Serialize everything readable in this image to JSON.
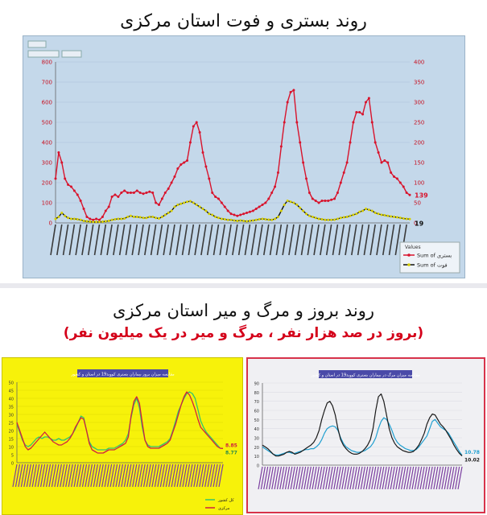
{
  "page": {
    "title_main": "روند بستری و فوت استان مرکزی",
    "title_second": "روند بروز و مرگ و میر استان مرکزی",
    "subtitle_second": "(بروز در صد هزار نفر ، مرگ و میر در یک میلیون نفر)"
  },
  "chart_data": [
    {
      "type": "line",
      "yticks": [
        "0",
        "100",
        "200",
        "300",
        "400",
        "500",
        "600",
        "700",
        "800"
      ],
      "ylim": [
        0,
        800
      ],
      "y2ticks": [
        "0",
        "50",
        "100",
        "150",
        "200",
        "250",
        "300",
        "350",
        "400"
      ],
      "y2lim": [
        0,
        400
      ],
      "legend": {
        "title": "Values",
        "position": "bottom-right",
        "entries": [
          "Sum of بستری",
          "Sum of فوت"
        ]
      },
      "end_labels": [
        "139",
        "19"
      ],
      "series": [
        {
          "name": "Sum of بستری",
          "color": "#d8132c",
          "values": [
            220,
            350,
            300,
            220,
            190,
            180,
            160,
            140,
            110,
            70,
            30,
            20,
            15,
            20,
            15,
            30,
            60,
            80,
            130,
            140,
            130,
            150,
            160,
            150,
            150,
            150,
            160,
            150,
            145,
            150,
            155,
            150,
            100,
            90,
            120,
            150,
            170,
            200,
            230,
            270,
            290,
            300,
            310,
            400,
            480,
            500,
            450,
            350,
            280,
            220,
            150,
            130,
            120,
            100,
            80,
            60,
            45,
            40,
            35,
            40,
            45,
            50,
            55,
            60,
            70,
            80,
            90,
            100,
            120,
            150,
            180,
            250,
            380,
            500,
            600,
            650,
            660,
            500,
            400,
            300,
            220,
            150,
            120,
            110,
            100,
            110,
            110,
            110,
            115,
            120,
            150,
            200,
            250,
            300,
            400,
            500,
            550,
            550,
            540,
            600,
            620,
            500,
            400,
            350,
            300,
            310,
            300,
            250,
            230,
            220,
            200,
            180,
            150,
            139
          ]
        },
        {
          "name": "Sum of فوت",
          "color": "#111111",
          "values": [
            20,
            30,
            50,
            35,
            25,
            20,
            20,
            18,
            15,
            10,
            8,
            6,
            5,
            5,
            5,
            6,
            8,
            10,
            15,
            18,
            20,
            20,
            22,
            30,
            35,
            30,
            30,
            28,
            25,
            25,
            30,
            30,
            25,
            22,
            30,
            40,
            50,
            60,
            80,
            90,
            95,
            100,
            105,
            108,
            100,
            90,
            80,
            70,
            60,
            45,
            40,
            30,
            25,
            20,
            18,
            15,
            15,
            12,
            10,
            12,
            10,
            8,
            10,
            12,
            15,
            18,
            20,
            18,
            16,
            15,
            20,
            30,
            60,
            90,
            110,
            105,
            100,
            90,
            75,
            60,
            45,
            35,
            30,
            25,
            20,
            18,
            15,
            15,
            15,
            16,
            20,
            25,
            28,
            30,
            35,
            40,
            45,
            55,
            60,
            70,
            65,
            60,
            50,
            45,
            40,
            38,
            35,
            32,
            30,
            28,
            25,
            22,
            20,
            19
          ]
        }
      ]
    },
    {
      "type": "line",
      "title": "مقایسه میزان بروز بیماران بستری کووید19 در استان و کشور",
      "yticks": [
        "0",
        "5",
        "10",
        "15",
        "20",
        "25",
        "30",
        "35",
        "40",
        "45",
        "50"
      ],
      "ylim": [
        0,
        50
      ],
      "end_labels": [
        "8.85",
        "8.77"
      ],
      "legend": [
        "کل کشور",
        "مرکزی"
      ],
      "series": [
        {
          "name": "کل کشور",
          "color": "#34c46b",
          "values": [
            24,
            19,
            14,
            11,
            10,
            11,
            13,
            15,
            16,
            15,
            16,
            16,
            15,
            14,
            14,
            15,
            14,
            14,
            15,
            16,
            18,
            21,
            25,
            29,
            28,
            20,
            13,
            10,
            9,
            8,
            8,
            8,
            8,
            9,
            9,
            9,
            10,
            11,
            12,
            14,
            18,
            28,
            36,
            40,
            34,
            22,
            14,
            11,
            10,
            10,
            10,
            10,
            11,
            12,
            13,
            15,
            20,
            26,
            32,
            36,
            40,
            43,
            44,
            43,
            40,
            33,
            26,
            22,
            19,
            17,
            15,
            13,
            11,
            9,
            8.8
          ]
        },
        {
          "name": "مرکزی",
          "color": "#d02040",
          "values": [
            25,
            20,
            15,
            10,
            8,
            9,
            11,
            13,
            15,
            17,
            19,
            17,
            15,
            13,
            12,
            11,
            11,
            12,
            13,
            15,
            18,
            22,
            25,
            28,
            27,
            20,
            12,
            8,
            7,
            6,
            6,
            6,
            7,
            8,
            8,
            8,
            9,
            10,
            11,
            12,
            16,
            29,
            38,
            41,
            37,
            25,
            14,
            10,
            9,
            9,
            9,
            9,
            10,
            11,
            12,
            14,
            19,
            24,
            30,
            36,
            41,
            44,
            42,
            38,
            33,
            27,
            22,
            20,
            18,
            16,
            14,
            12,
            10,
            9,
            8.85
          ]
        }
      ]
    },
    {
      "type": "line",
      "title": "مقایسه میزان مرگ در بیماران بستری کووید19 در استان و کشور",
      "yticks": [
        "0",
        "10",
        "20",
        "30",
        "40",
        "50",
        "60",
        "70",
        "80",
        "90"
      ],
      "ylim": [
        0,
        90
      ],
      "end_labels": [
        "10.78",
        "10.02"
      ],
      "series": [
        {
          "color": "#1f9fd0",
          "values": [
            20,
            18,
            16,
            14,
            12,
            11,
            11,
            12,
            13,
            14,
            14,
            13,
            13,
            14,
            15,
            16,
            17,
            17,
            18,
            18,
            20,
            23,
            28,
            35,
            40,
            42,
            43,
            42,
            38,
            30,
            24,
            20,
            18,
            16,
            15,
            14,
            14,
            15,
            16,
            18,
            20,
            24,
            30,
            40,
            48,
            52,
            50,
            45,
            38,
            30,
            25,
            22,
            20,
            18,
            17,
            16,
            16,
            17,
            20,
            24,
            28,
            32,
            40,
            48,
            50,
            46,
            42,
            40,
            38,
            35,
            30,
            25,
            20,
            15,
            10.78
          ]
        },
        {
          "color": "#1a1a1a",
          "values": [
            22,
            20,
            18,
            15,
            12,
            10,
            10,
            11,
            12,
            14,
            15,
            14,
            12,
            13,
            14,
            16,
            18,
            20,
            22,
            25,
            30,
            38,
            50,
            60,
            68,
            70,
            65,
            55,
            40,
            28,
            22,
            18,
            15,
            13,
            12,
            12,
            13,
            15,
            18,
            22,
            28,
            40,
            60,
            75,
            78,
            70,
            55,
            40,
            30,
            24,
            20,
            18,
            16,
            15,
            14,
            14,
            15,
            18,
            22,
            28,
            35,
            45,
            52,
            56,
            55,
            50,
            45,
            42,
            38,
            33,
            28,
            22,
            17,
            13,
            10.02
          ]
        }
      ]
    }
  ]
}
